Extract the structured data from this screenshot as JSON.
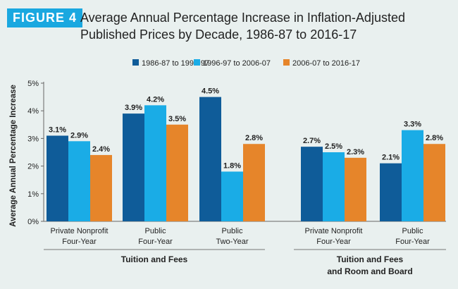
{
  "figure_label": "FIGURE 4",
  "title": "Average Annual Percentage Increase in Inflation-Adjusted Published Prices by Decade, 1986-87 to 2016-17",
  "chart_data": {
    "type": "bar",
    "ylabel": "Average Annual Percentage Increase",
    "ylim": [
      0,
      5
    ],
    "yticks": [
      "0%",
      "1%",
      "2%",
      "3%",
      "4%",
      "5%"
    ],
    "categories": [
      [
        "Private Nonprofit",
        "Four-Year"
      ],
      [
        "Public",
        "Four-Year"
      ],
      [
        "Public",
        "Two-Year"
      ],
      [
        "Private Nonprofit",
        "Four-Year"
      ],
      [
        "Public",
        "Four-Year"
      ]
    ],
    "groups": [
      {
        "label": [
          "Tuition and Fees"
        ],
        "categories": [
          0,
          1,
          2
        ]
      },
      {
        "label": [
          "Tuition and Fees",
          "and Room and Board"
        ],
        "categories": [
          3,
          4
        ]
      }
    ],
    "series": [
      {
        "name": "1986-87 to 1996-97",
        "color": "#0f5c99",
        "values": [
          3.1,
          3.9,
          4.5,
          2.7,
          2.1
        ],
        "labels": [
          "3.1%",
          "3.9%",
          "4.5%",
          "2.7%",
          "2.1%"
        ]
      },
      {
        "name": "1996-97 to 2006-07",
        "color": "#1aace6",
        "values": [
          2.9,
          4.2,
          1.8,
          2.5,
          3.3
        ],
        "labels": [
          "2.9%",
          "4.2%",
          "1.8%",
          "2.5%",
          "3.3%"
        ]
      },
      {
        "name": "2006-07 to 2016-17",
        "color": "#e6852a",
        "values": [
          2.4,
          3.5,
          2.8,
          2.3,
          2.8
        ],
        "labels": [
          "2.4%",
          "3.5%",
          "2.8%",
          "2.3%",
          "2.8%"
        ]
      }
    ],
    "legend_position": "top",
    "grid": false
  }
}
